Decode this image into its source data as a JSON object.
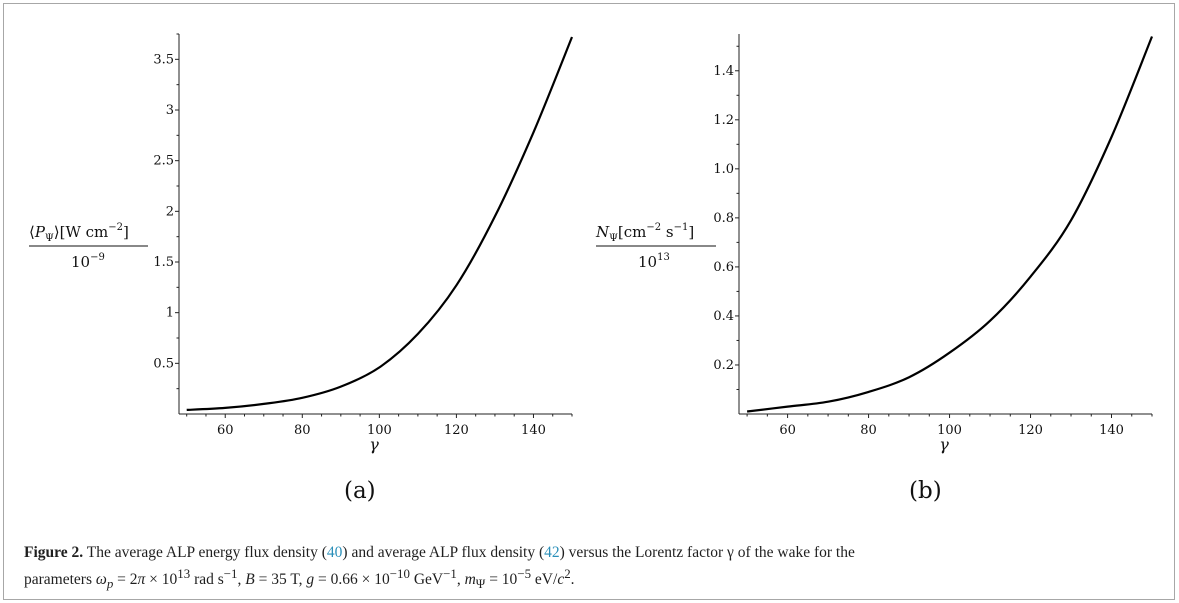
{
  "figure": {
    "caption_label": "Figure 2.",
    "caption_text_1": " The average ALP energy flux density (",
    "ref_a": "40",
    "caption_text_2": ") and average ALP flux density (",
    "ref_b": "42",
    "caption_text_3": ") versus the Lorentz factor γ of the wake for the",
    "caption_line2": "parameters ω_p = 2π × 10^13 rad s^−1, B = 35 T, g = 0.66 × 10^−10 GeV^−1, m_Ψ = 10^−5 eV/c^2."
  },
  "panels": [
    {
      "sublabel": "(a)",
      "xlabel": "γ",
      "ylabel_num": "⟨P_Ψ⟩[W cm^−2]",
      "ylabel_den": "10^−9"
    },
    {
      "sublabel": "(b)",
      "xlabel": "γ",
      "ylabel_num": "N_Ψ[cm^−2 s^−1]",
      "ylabel_den": "10^13"
    }
  ],
  "chart_data": [
    {
      "type": "line",
      "x_ticks": [
        "60",
        "80",
        "100",
        "120",
        "140"
      ],
      "y_ticks": [
        "0.5",
        "1",
        "1.5",
        "2",
        "2.5",
        "3",
        "3.5"
      ],
      "xlim": [
        48,
        150
      ],
      "ylim": [
        0,
        3.75
      ],
      "x": [
        50,
        60,
        70,
        80,
        90,
        100,
        110,
        120,
        130,
        140,
        150
      ],
      "y": [
        0.04,
        0.06,
        0.1,
        0.16,
        0.27,
        0.46,
        0.79,
        1.27,
        1.95,
        2.78,
        3.72
      ]
    },
    {
      "type": "line",
      "x_ticks": [
        "60",
        "80",
        "100",
        "120",
        "140"
      ],
      "y_ticks": [
        "0.2",
        "0.4",
        "0.6",
        "0.8",
        "1.0",
        "1.2",
        "1.4"
      ],
      "xlim": [
        48,
        150
      ],
      "ylim": [
        0,
        1.55
      ],
      "x": [
        50,
        60,
        70,
        80,
        90,
        100,
        110,
        120,
        130,
        140,
        150
      ],
      "y": [
        0.01,
        0.03,
        0.05,
        0.09,
        0.15,
        0.25,
        0.38,
        0.56,
        0.79,
        1.13,
        1.54
      ]
    }
  ]
}
